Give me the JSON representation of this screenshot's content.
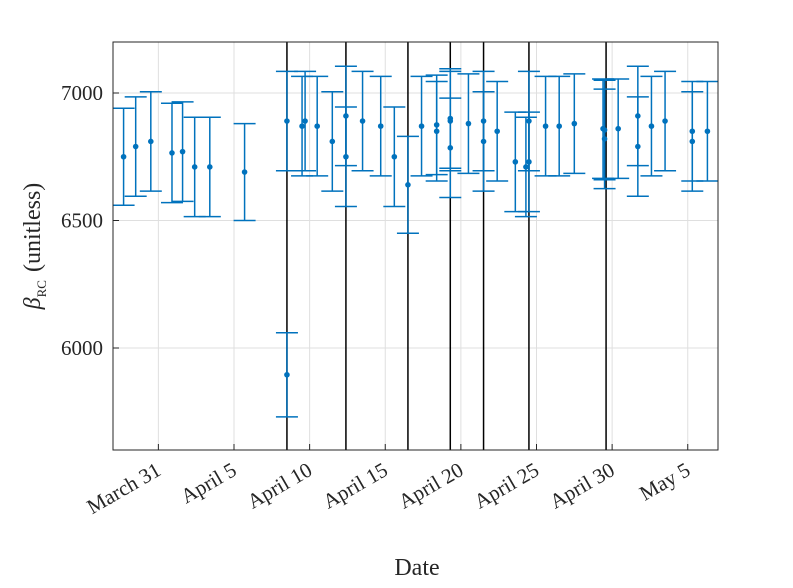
{
  "chart_data": {
    "type": "errorbar",
    "xlabel": "Date",
    "ylabel": {
      "symbol": "β",
      "subscript": "RC",
      "text": "(unitless)"
    },
    "color": "#0072bd",
    "line_color": "#000000",
    "grid": true,
    "x": [
      28.7,
      29.5,
      30.5,
      31.9,
      32.6,
      33.4,
      34.4,
      36.7,
      39.5,
      39.5,
      40.5,
      40.7,
      41.5,
      42.5,
      43.4,
      43.4,
      44.5,
      45.7,
      46.6,
      47.5,
      48.4,
      49.4,
      49.4,
      50.3,
      50.3,
      50.3,
      51.5,
      52.5,
      52.5,
      53.4,
      54.6,
      55.3,
      55.5,
      55.5,
      56.6,
      57.5,
      58.5,
      60.4,
      60.5,
      60.5,
      61.4,
      62.7,
      62.7,
      63.6,
      64.5,
      66.3,
      66.3,
      67.3
    ],
    "values": [
      6750,
      6790,
      6810,
      6765,
      6770,
      6710,
      6710,
      6690,
      6890,
      5895,
      6870,
      6890,
      6870,
      6810,
      6910,
      6750,
      6890,
      6870,
      6750,
      6640,
      6870,
      6875,
      6850,
      6890,
      6785,
      6900,
      6880,
      6890,
      6810,
      6850,
      6730,
      6710,
      6730,
      6890,
      6870,
      6870,
      6880,
      6860,
      6855,
      6820,
      6860,
      6910,
      6790,
      6870,
      6890,
      6850,
      6810,
      6850
    ],
    "errors": [
      190,
      195,
      195,
      195,
      195,
      195,
      195,
      190,
      195,
      165,
      195,
      195,
      195,
      195,
      195,
      195,
      195,
      195,
      195,
      190,
      195,
      195,
      195,
      195,
      195,
      195,
      195,
      195,
      195,
      195,
      195,
      195,
      195,
      195,
      195,
      195,
      195,
      195,
      195,
      195,
      195,
      195,
      195,
      195,
      195,
      195,
      195,
      195
    ],
    "vlines": [
      39.5,
      43.4,
      47.5,
      50.3,
      52.5,
      55.5,
      60.6
    ],
    "xlim": [
      28,
      68
    ],
    "xticks": [
      {
        "value": 31,
        "label": "March 31"
      },
      {
        "value": 36,
        "label": "April 5"
      },
      {
        "value": 41,
        "label": "April 10"
      },
      {
        "value": 46,
        "label": "April 15"
      },
      {
        "value": 51,
        "label": "April 20"
      },
      {
        "value": 56,
        "label": "April 25"
      },
      {
        "value": 61,
        "label": "April 30"
      },
      {
        "value": 66,
        "label": "May 5"
      }
    ],
    "ylim": [
      5600,
      7200
    ],
    "yticks": [
      6000,
      6500,
      7000
    ]
  }
}
